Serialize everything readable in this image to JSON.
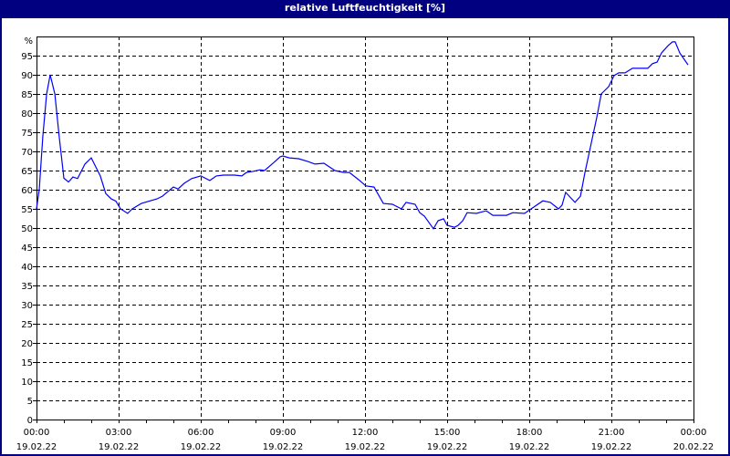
{
  "title": "relative Luftfeuchtigkeit [%]",
  "chart_data": {
    "type": "line",
    "title": "relative Luftfeuchtigkeit [%]",
    "xlabel": "",
    "ylabel": "%",
    "xlim_hours": [
      0,
      24
    ],
    "ylim": [
      0,
      100
    ],
    "grid": true,
    "y_ticks": [
      "0",
      "5",
      "10",
      "15",
      "20",
      "25",
      "30",
      "35",
      "40",
      "45",
      "50",
      "55",
      "60",
      "65",
      "70",
      "75",
      "80",
      "85",
      "90",
      "95"
    ],
    "y_unit_label": "%",
    "x_ticks": [
      {
        "hour": 0,
        "time": "00:00",
        "date": "19.02.22"
      },
      {
        "hour": 3,
        "time": "03:00",
        "date": "19.02.22"
      },
      {
        "hour": 6,
        "time": "06:00",
        "date": "19.02.22"
      },
      {
        "hour": 9,
        "time": "09:00",
        "date": "19.02.22"
      },
      {
        "hour": 12,
        "time": "12:00",
        "date": "19.02.22"
      },
      {
        "hour": 15,
        "time": "15:00",
        "date": "19.02.22"
      },
      {
        "hour": 18,
        "time": "18:00",
        "date": "19.02.22"
      },
      {
        "hour": 21,
        "time": "21:00",
        "date": "19.02.22"
      },
      {
        "hour": 24,
        "time": "00:00",
        "date": "20.02.22"
      }
    ],
    "series": [
      {
        "name": "relative Luftfeuchtigkeit",
        "color": "#0000ff",
        "points": [
          [
            0,
            55
          ],
          [
            0.1,
            60
          ],
          [
            0.23,
            73.8
          ],
          [
            0.37,
            85
          ],
          [
            0.5,
            90
          ],
          [
            0.67,
            85
          ],
          [
            0.83,
            73.8
          ],
          [
            1.0,
            63
          ],
          [
            1.17,
            62
          ],
          [
            1.33,
            63.3
          ],
          [
            1.5,
            62.9
          ],
          [
            1.77,
            66.7
          ],
          [
            2.0,
            68.3
          ],
          [
            2.33,
            63.6
          ],
          [
            2.53,
            59
          ],
          [
            2.73,
            57.6
          ],
          [
            2.9,
            57
          ],
          [
            3.07,
            55
          ],
          [
            3.33,
            53.8
          ],
          [
            3.5,
            55
          ],
          [
            3.83,
            56.4
          ],
          [
            4.4,
            57.6
          ],
          [
            4.6,
            58.3
          ],
          [
            5.0,
            60.7
          ],
          [
            5.17,
            60.2
          ],
          [
            5.4,
            61.7
          ],
          [
            5.67,
            62.9
          ],
          [
            6.0,
            63.6
          ],
          [
            6.33,
            62.4
          ],
          [
            6.57,
            63.6
          ],
          [
            6.83,
            63.8
          ],
          [
            7.23,
            63.8
          ],
          [
            7.5,
            63.6
          ],
          [
            7.67,
            64.5
          ],
          [
            7.93,
            64.8
          ],
          [
            8.17,
            65.2
          ],
          [
            8.33,
            65
          ],
          [
            8.67,
            67.1
          ],
          [
            8.9,
            68.6
          ],
          [
            9.0,
            68.8
          ],
          [
            9.23,
            68.3
          ],
          [
            9.57,
            68.1
          ],
          [
            9.9,
            67.4
          ],
          [
            10.17,
            66.7
          ],
          [
            10.5,
            66.9
          ],
          [
            10.9,
            65
          ],
          [
            11.23,
            64.5
          ],
          [
            11.43,
            64.5
          ],
          [
            11.77,
            62.6
          ],
          [
            12.03,
            61
          ],
          [
            12.33,
            60.7
          ],
          [
            12.67,
            56.4
          ],
          [
            13.0,
            56.2
          ],
          [
            13.33,
            55
          ],
          [
            13.5,
            56.7
          ],
          [
            13.83,
            56.2
          ],
          [
            14.0,
            54
          ],
          [
            14.17,
            53.1
          ],
          [
            14.5,
            49.8
          ],
          [
            14.67,
            51.9
          ],
          [
            14.87,
            52.4
          ],
          [
            15.0,
            50.7
          ],
          [
            15.27,
            50.2
          ],
          [
            15.4,
            50.7
          ],
          [
            15.57,
            51.9
          ],
          [
            15.73,
            54
          ],
          [
            16.07,
            53.8
          ],
          [
            16.43,
            54.5
          ],
          [
            16.67,
            53.3
          ],
          [
            17.17,
            53.3
          ],
          [
            17.4,
            54
          ],
          [
            17.83,
            53.8
          ],
          [
            18.07,
            55
          ],
          [
            18.5,
            57.1
          ],
          [
            18.77,
            56.7
          ],
          [
            19.07,
            55
          ],
          [
            19.2,
            56
          ],
          [
            19.33,
            59.3
          ],
          [
            19.67,
            56.7
          ],
          [
            19.87,
            58.3
          ],
          [
            20.03,
            64.3
          ],
          [
            20.47,
            79
          ],
          [
            20.63,
            85
          ],
          [
            20.9,
            86.9
          ],
          [
            21.1,
            89.8
          ],
          [
            21.27,
            90.5
          ],
          [
            21.5,
            90.5
          ],
          [
            21.77,
            91.7
          ],
          [
            22.33,
            91.7
          ],
          [
            22.5,
            92.9
          ],
          [
            22.67,
            93.3
          ],
          [
            22.83,
            95.7
          ],
          [
            23.07,
            97.6
          ],
          [
            23.23,
            98.6
          ],
          [
            23.33,
            98.6
          ],
          [
            23.5,
            95.7
          ],
          [
            23.8,
            92.6
          ]
        ]
      }
    ]
  }
}
